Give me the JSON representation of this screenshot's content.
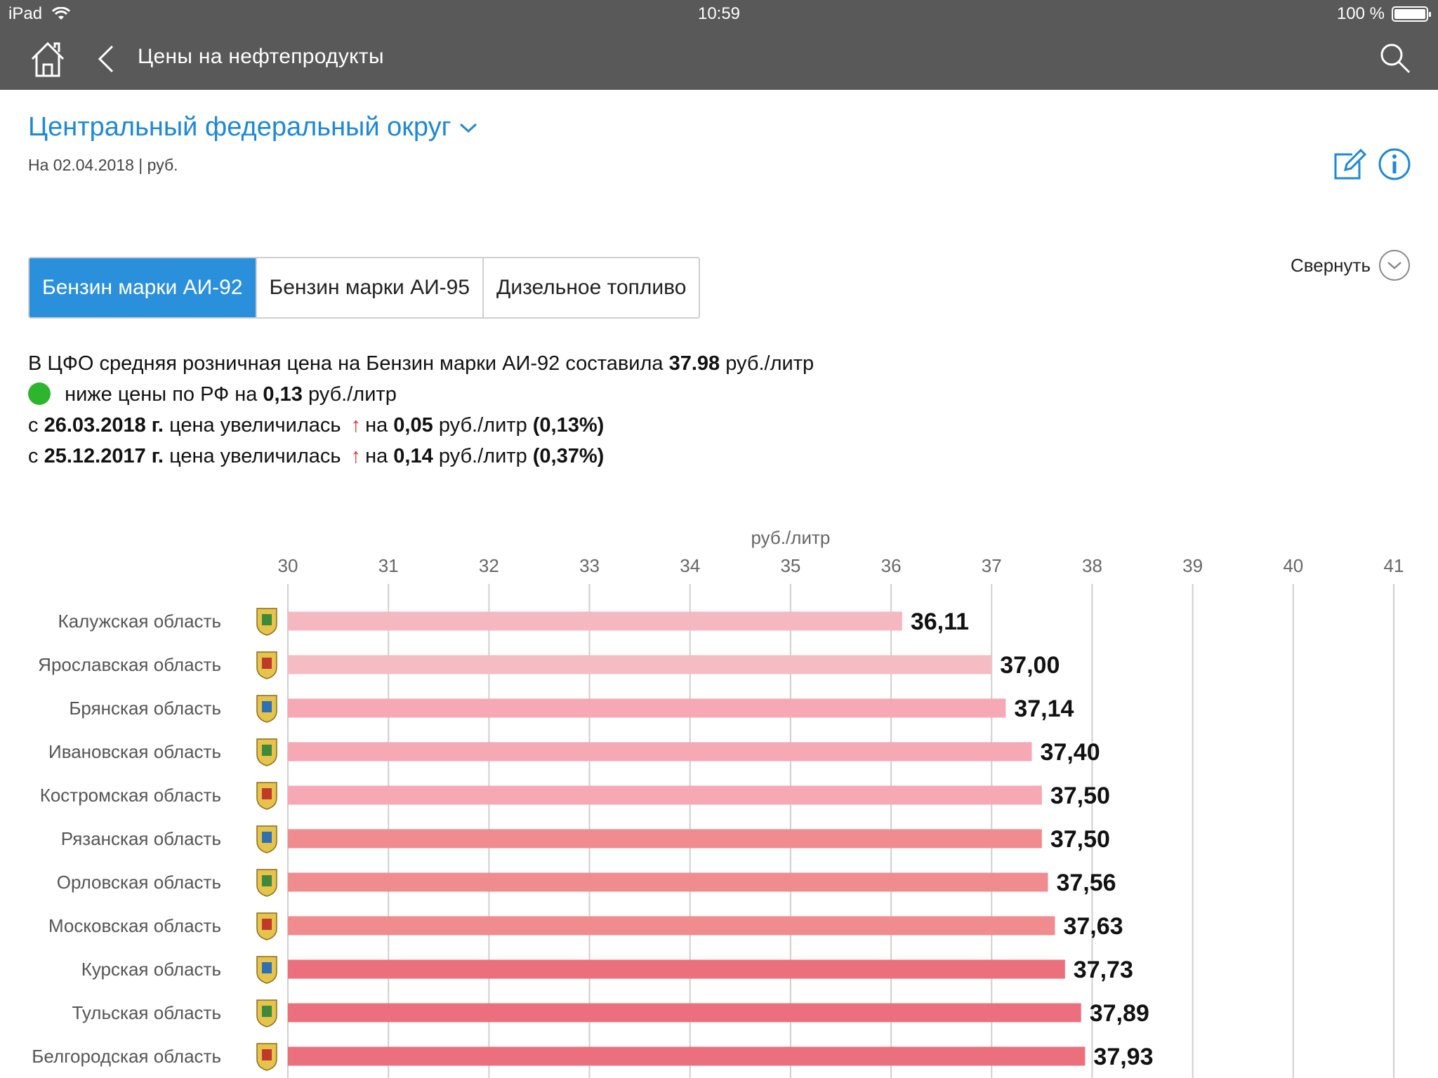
{
  "statusbar": {
    "device": "iPad",
    "time": "10:59",
    "battery_text": "100 %"
  },
  "navbar": {
    "title": "Цены на нефтепродукты"
  },
  "header": {
    "region": "Центральный федеральный округ",
    "subtitle": "На 02.04.2018 | руб."
  },
  "tabs": [
    {
      "label": "Бензин марки АИ-92"
    },
    {
      "label": "Бензин марки АИ-95"
    },
    {
      "label": "Дизельное топливо"
    }
  ],
  "collapse_label": "Свернуть",
  "summary": {
    "line1_prefix": "В ЦФО средняя розничная цена на Бензин марки АИ-92 составила",
    "line1_value": "37.98",
    "line1_unit": "руб./литр",
    "line2_text": "ниже цены по РФ на",
    "line2_value": "0,13",
    "line2_unit": "руб./литр",
    "line3_from": "с",
    "line3_date": "26.03.2018 г.",
    "line3_text": "цена увеличилась",
    "line3_on": "на",
    "line3_value": "0,05",
    "line3_unit": "руб./литр",
    "line3_pct": "(0,13%)",
    "line4_from": "с",
    "line4_date": "25.12.2017 г.",
    "line4_text": "цена увеличилась",
    "line4_on": "на",
    "line4_value": "0,14",
    "line4_unit": "руб./литр",
    "line4_pct": "(0,37%)",
    "arrow": "↑",
    "status_color": "#2db52d",
    "arrow_color": "#e82828"
  },
  "chart_data": {
    "type": "bar",
    "orientation": "horizontal",
    "axis_unit": "руб./литр",
    "xlim": [
      30,
      41
    ],
    "ticks": [
      30,
      31,
      32,
      33,
      34,
      35,
      36,
      37,
      38,
      39,
      40,
      41
    ],
    "grid": true,
    "categories": [
      "Калужская область",
      "Ярославская область",
      "Брянская область",
      "Ивановская область",
      "Костромская область",
      "Рязанская область",
      "Орловская область",
      "Московская область",
      "Курская область",
      "Тульская область",
      "Белгородская область"
    ],
    "values": [
      36.11,
      37.0,
      37.14,
      37.4,
      37.5,
      37.5,
      37.56,
      37.63,
      37.73,
      37.89,
      37.93
    ],
    "value_labels": [
      "36,11",
      "37,00",
      "37,14",
      "37,40",
      "37,50",
      "37,50",
      "37,56",
      "37,63",
      "37,73",
      "37,89",
      "37,93"
    ],
    "bar_colors": [
      "#f6b8c0",
      "#f5bcc4",
      "#f6a8b4",
      "#f6a8b4",
      "#f6a8b4",
      "#f08b90",
      "#f08b90",
      "#f08b90",
      "#ec6f7d",
      "#ec6f7d",
      "#ec6f7d"
    ]
  }
}
